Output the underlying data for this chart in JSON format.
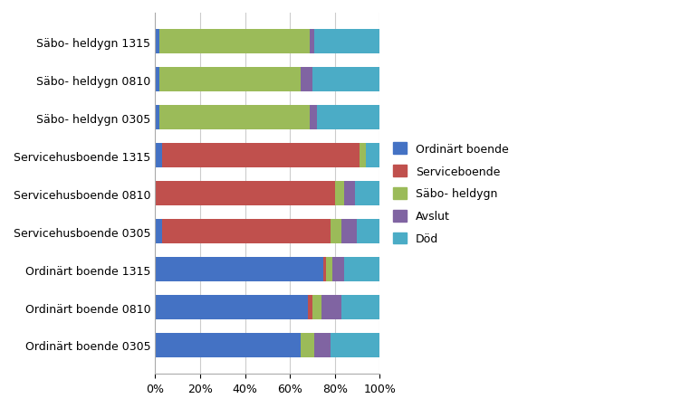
{
  "categories": [
    "Ordinärt boende 0305",
    "Ordinärt boende 0810",
    "Ordinärt boende 1315",
    "Servicehusboende 0305",
    "Servicehusboende 0810",
    "Servicehusboende 1315",
    "Säbo- heldygn 0305",
    "Säbo- heldygn 0810",
    "Säbo- heldygn 1315"
  ],
  "series": {
    "Ordinärt boende": [
      0.65,
      0.68,
      0.75,
      0.03,
      0.0,
      0.03,
      0.02,
      0.02,
      0.02
    ],
    "Serviceboende": [
      0.0,
      0.02,
      0.01,
      0.75,
      0.8,
      0.88,
      0.0,
      0.0,
      0.0
    ],
    "Säbo- heldygn": [
      0.06,
      0.04,
      0.03,
      0.05,
      0.04,
      0.03,
      0.67,
      0.63,
      0.67
    ],
    "Avslut": [
      0.07,
      0.09,
      0.05,
      0.07,
      0.05,
      0.0,
      0.03,
      0.05,
      0.02
    ],
    "Död": [
      0.22,
      0.17,
      0.16,
      0.1,
      0.11,
      0.06,
      0.28,
      0.3,
      0.29
    ]
  },
  "colors": {
    "Ordinärt boende": "#4472C4",
    "Serviceboende": "#C0504D",
    "Säbo- heldygn": "#9BBB59",
    "Avslut": "#8064A2",
    "Död": "#4BACC6"
  },
  "xlim": [
    0,
    1.0
  ],
  "xticks": [
    0,
    0.2,
    0.4,
    0.6,
    0.8,
    1.0
  ],
  "xticklabels": [
    "0%",
    "20%",
    "40%",
    "60%",
    "80%",
    "100%"
  ],
  "background_color": "#FFFFFF",
  "legend_order": [
    "Ordinärt boende",
    "Serviceboende",
    "Säbo- heldygn",
    "Avslut",
    "Död"
  ],
  "figsize": [
    7.52,
    4.52
  ],
  "dpi": 100
}
